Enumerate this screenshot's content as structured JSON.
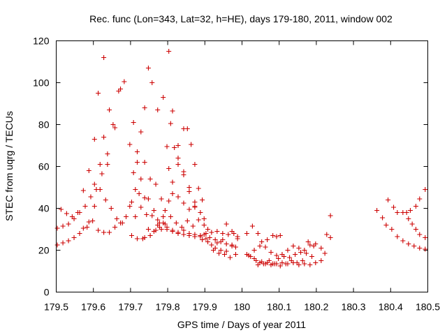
{
  "chart_data": {
    "type": "scatter",
    "title": "Rec. func (Lon=343, Lat=32, h=HE), days 179-180, 2011, window 002",
    "xlabel": "GPS time / Days of year 2011",
    "ylabel": "STEC from uqrg / TECUs",
    "xlim": [
      179.5,
      180.5
    ],
    "ylim": [
      0,
      120
    ],
    "x_ticks": [
      "179.5",
      "179.6",
      "179.7",
      "179.8",
      "179.9",
      "180",
      "180.1",
      "180.2",
      "180.3",
      "180.4",
      "180.5"
    ],
    "y_ticks": [
      "0",
      "20",
      "40",
      "60",
      "80",
      "100",
      "120"
    ],
    "grid": false,
    "legend": "none",
    "marker": "plus",
    "color": "#cc0000",
    "series": [
      {
        "points": [
          [
            179.503,
            30.5
          ],
          [
            179.518,
            31.5
          ],
          [
            179.533,
            32.5
          ],
          [
            179.548,
            35
          ],
          [
            179.563,
            38
          ],
          [
            179.578,
            41
          ],
          [
            179.593,
            45.5
          ],
          [
            179.608,
            49
          ],
          [
            179.623,
            56.5
          ],
          [
            179.638,
            66
          ],
          [
            179.653,
            80
          ],
          [
            179.668,
            96
          ],
          [
            179.683,
            100.5
          ],
          [
            179.513,
            39.5
          ],
          [
            179.528,
            37.5
          ],
          [
            179.543,
            36
          ],
          [
            179.558,
            38
          ],
          [
            179.573,
            48.5
          ],
          [
            179.588,
            58
          ],
          [
            179.603,
            73
          ],
          [
            179.613,
            95
          ],
          [
            179.628,
            112
          ],
          [
            179.643,
            87
          ],
          [
            179.658,
            78.5
          ],
          [
            179.673,
            97
          ],
          [
            179.503,
            22.5
          ],
          [
            179.518,
            23.5
          ],
          [
            179.533,
            24.5
          ],
          [
            179.548,
            26
          ],
          [
            179.563,
            28
          ],
          [
            179.573,
            30.5
          ],
          [
            179.588,
            33.5
          ],
          [
            179.603,
            41
          ],
          [
            179.618,
            49
          ],
          [
            179.633,
            44
          ],
          [
            179.648,
            40
          ],
          [
            179.663,
            35
          ],
          [
            179.678,
            33
          ],
          [
            179.583,
            31
          ],
          [
            179.598,
            34
          ],
          [
            179.613,
            29.5
          ],
          [
            179.628,
            28.5
          ],
          [
            179.643,
            28.5
          ],
          [
            179.658,
            31
          ],
          [
            179.673,
            33
          ],
          [
            179.688,
            36
          ],
          [
            179.698,
            41
          ],
          [
            179.703,
            27
          ],
          [
            179.718,
            25.5
          ],
          [
            179.733,
            25.5
          ],
          [
            179.603,
            51.5
          ],
          [
            179.618,
            61
          ],
          [
            179.628,
            74
          ],
          [
            179.638,
            61
          ],
          [
            179.698,
            70.5
          ],
          [
            179.708,
            81
          ],
          [
            179.718,
            67
          ],
          [
            179.728,
            76.5
          ],
          [
            179.738,
            88
          ],
          [
            179.748,
            107
          ],
          [
            179.758,
            100
          ],
          [
            179.773,
            87
          ],
          [
            179.788,
            93
          ],
          [
            179.803,
            115
          ],
          [
            179.813,
            86.5
          ],
          [
            179.828,
            70
          ],
          [
            179.843,
            78
          ],
          [
            179.853,
            78
          ],
          [
            179.863,
            70.5
          ],
          [
            179.873,
            61
          ],
          [
            179.708,
            57
          ],
          [
            179.718,
            62
          ],
          [
            179.728,
            54
          ],
          [
            179.738,
            62
          ],
          [
            179.753,
            54
          ],
          [
            179.768,
            51.5
          ],
          [
            179.783,
            44.5
          ],
          [
            179.798,
            69.5
          ],
          [
            179.808,
            80.5
          ],
          [
            179.818,
            69
          ],
          [
            179.828,
            64
          ],
          [
            179.843,
            56
          ],
          [
            179.858,
            50
          ],
          [
            179.873,
            43
          ],
          [
            179.703,
            43
          ],
          [
            179.713,
            49
          ],
          [
            179.723,
            47
          ],
          [
            179.738,
            45
          ],
          [
            179.748,
            44.5
          ],
          [
            179.763,
            39
          ],
          [
            179.778,
            33
          ],
          [
            179.793,
            39
          ],
          [
            179.803,
            59
          ],
          [
            179.813,
            52.5
          ],
          [
            179.828,
            61
          ],
          [
            179.843,
            57.5
          ],
          [
            179.858,
            48
          ],
          [
            179.873,
            41
          ],
          [
            179.883,
            49.5
          ],
          [
            179.893,
            44
          ],
          [
            179.713,
            36
          ],
          [
            179.728,
            40.5
          ],
          [
            179.743,
            37
          ],
          [
            179.758,
            36.5
          ],
          [
            179.773,
            32
          ],
          [
            179.788,
            36
          ],
          [
            179.803,
            43.5
          ],
          [
            179.813,
            47
          ],
          [
            179.828,
            45.5
          ],
          [
            179.843,
            42.5
          ],
          [
            179.858,
            39.5
          ],
          [
            179.873,
            40.5
          ],
          [
            179.888,
            38
          ],
          [
            179.898,
            35
          ],
          [
            179.748,
            30
          ],
          [
            179.763,
            29
          ],
          [
            179.778,
            31
          ],
          [
            179.793,
            32.5
          ],
          [
            179.808,
            36
          ],
          [
            179.823,
            33
          ],
          [
            179.838,
            31
          ],
          [
            179.853,
            34
          ],
          [
            179.868,
            31.5
          ],
          [
            179.883,
            34.5
          ],
          [
            179.898,
            32
          ],
          [
            179.908,
            30
          ],
          [
            179.738,
            26
          ],
          [
            179.753,
            27
          ],
          [
            179.768,
            29.5
          ],
          [
            179.783,
            30
          ],
          [
            179.798,
            31
          ],
          [
            179.813,
            29
          ],
          [
            179.828,
            28.5
          ],
          [
            179.843,
            29.5
          ],
          [
            179.858,
            28
          ],
          [
            179.873,
            27.5
          ],
          [
            179.888,
            26.5
          ],
          [
            179.903,
            25.5
          ],
          [
            179.773,
            34.5
          ],
          [
            179.788,
            33
          ],
          [
            179.798,
            30
          ],
          [
            179.813,
            29.5
          ],
          [
            179.828,
            28
          ],
          [
            179.843,
            27.5
          ],
          [
            179.858,
            27
          ],
          [
            179.873,
            26.5
          ],
          [
            179.888,
            27
          ],
          [
            179.903,
            28
          ],
          [
            179.918,
            28.5
          ],
          [
            179.933,
            29
          ],
          [
            179.948,
            28
          ],
          [
            179.963,
            27.5
          ],
          [
            179.978,
            28
          ],
          [
            179.893,
            25
          ],
          [
            179.908,
            24
          ],
          [
            179.918,
            22.5
          ],
          [
            179.928,
            21
          ],
          [
            179.943,
            20
          ],
          [
            179.958,
            19.5
          ],
          [
            179.973,
            22
          ],
          [
            179.988,
            25.5
          ],
          [
            179.898,
            27.5
          ],
          [
            179.913,
            26
          ],
          [
            179.928,
            25
          ],
          [
            179.943,
            24
          ],
          [
            179.958,
            23
          ],
          [
            179.973,
            22.5
          ],
          [
            179.983,
            21.5
          ],
          [
            179.923,
            20
          ],
          [
            179.938,
            18.5
          ],
          [
            179.953,
            18
          ],
          [
            179.968,
            16.5
          ],
          [
            179.983,
            18
          ],
          [
            179.933,
            23.5
          ],
          [
            179.948,
            25
          ],
          [
            179.958,
            32.5
          ],
          [
            179.973,
            29
          ],
          [
            179.988,
            26.5
          ],
          [
            180.013,
            18
          ],
          [
            180.023,
            17
          ],
          [
            180.033,
            16
          ],
          [
            180.048,
            14
          ],
          [
            180.063,
            13.5
          ],
          [
            180.078,
            13
          ],
          [
            180.093,
            13.5
          ],
          [
            180.108,
            14
          ],
          [
            180.123,
            13.5
          ],
          [
            180.138,
            14
          ],
          [
            180.153,
            13
          ],
          [
            180.168,
            13.5
          ],
          [
            180.183,
            13
          ],
          [
            180.198,
            14
          ],
          [
            180.213,
            15
          ],
          [
            180.013,
            28
          ],
          [
            180.028,
            31.5
          ],
          [
            180.043,
            28
          ],
          [
            180.053,
            24
          ],
          [
            180.068,
            25
          ],
          [
            180.083,
            27
          ],
          [
            180.093,
            26.5
          ],
          [
            180.103,
            27
          ],
          [
            180.018,
            17.5
          ],
          [
            180.033,
            20
          ],
          [
            180.048,
            22
          ],
          [
            180.063,
            21.5
          ],
          [
            180.078,
            19
          ],
          [
            180.093,
            17.5
          ],
          [
            180.108,
            18
          ],
          [
            180.123,
            20
          ],
          [
            180.138,
            22
          ],
          [
            180.153,
            21
          ],
          [
            180.168,
            20
          ],
          [
            180.183,
            22.5
          ],
          [
            180.198,
            23
          ],
          [
            180.213,
            21
          ],
          [
            180.223,
            18.5
          ],
          [
            180.038,
            15
          ],
          [
            180.053,
            14.5
          ],
          [
            180.068,
            14
          ],
          [
            180.083,
            13.5
          ],
          [
            180.098,
            16
          ],
          [
            180.113,
            17
          ],
          [
            180.128,
            16.5
          ],
          [
            180.143,
            18
          ],
          [
            180.158,
            19
          ],
          [
            180.173,
            18.5
          ],
          [
            180.188,
            17
          ],
          [
            180.043,
            13
          ],
          [
            180.058,
            13.5
          ],
          [
            180.073,
            15
          ],
          [
            180.088,
            13.5
          ],
          [
            180.103,
            12.5
          ],
          [
            180.118,
            13.5
          ],
          [
            180.133,
            15
          ],
          [
            180.148,
            14
          ],
          [
            180.163,
            15
          ],
          [
            180.178,
            24
          ],
          [
            180.193,
            22
          ],
          [
            180.228,
            27.5
          ],
          [
            180.238,
            26
          ],
          [
            180.238,
            36.5
          ],
          [
            180.363,
            39
          ],
          [
            180.378,
            35.5
          ],
          [
            180.388,
            32
          ],
          [
            180.393,
            44
          ],
          [
            180.408,
            40.5
          ],
          [
            180.418,
            38
          ],
          [
            180.433,
            38
          ],
          [
            180.443,
            38
          ],
          [
            180.453,
            39
          ],
          [
            180.468,
            41
          ],
          [
            180.478,
            44.5
          ],
          [
            180.493,
            49
          ],
          [
            180.403,
            30
          ],
          [
            180.418,
            26.5
          ],
          [
            180.433,
            24.5
          ],
          [
            180.448,
            23
          ],
          [
            180.463,
            22
          ],
          [
            180.478,
            21
          ],
          [
            180.493,
            20.5
          ],
          [
            180.448,
            35
          ],
          [
            180.458,
            32.5
          ],
          [
            180.468,
            30
          ],
          [
            180.478,
            27.5
          ],
          [
            180.493,
            26
          ]
        ]
      }
    ]
  }
}
